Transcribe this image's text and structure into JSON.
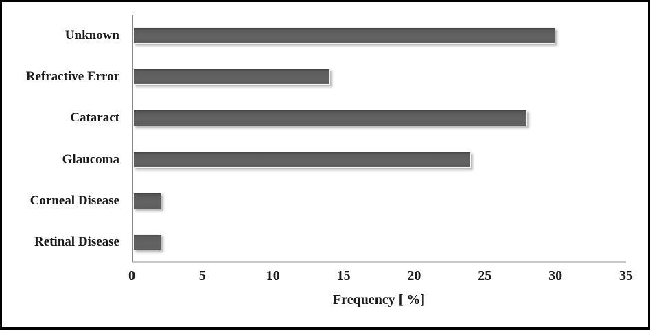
{
  "chart_data": {
    "type": "bar",
    "orientation": "horizontal",
    "title": "",
    "xlabel": "Frequency [ %]",
    "ylabel": "",
    "categories": [
      "Unknown",
      "Refractive Error",
      "Cataract",
      "Glaucoma",
      "Corneal Disease",
      "Retinal Disease"
    ],
    "values": [
      30,
      14,
      28,
      24,
      2,
      2
    ],
    "xlim": [
      0,
      35
    ],
    "xticks": [
      0,
      5,
      10,
      15,
      20,
      25,
      30,
      35
    ],
    "grid": false,
    "legend": false,
    "colors": {
      "bar": "#5e5e5e",
      "frame": "#000000",
      "background": "#ffffff",
      "axis_vertical": "#8c8c8c",
      "axis_horizontal": "#c9c9c9",
      "text": "#1a1a1a"
    }
  }
}
